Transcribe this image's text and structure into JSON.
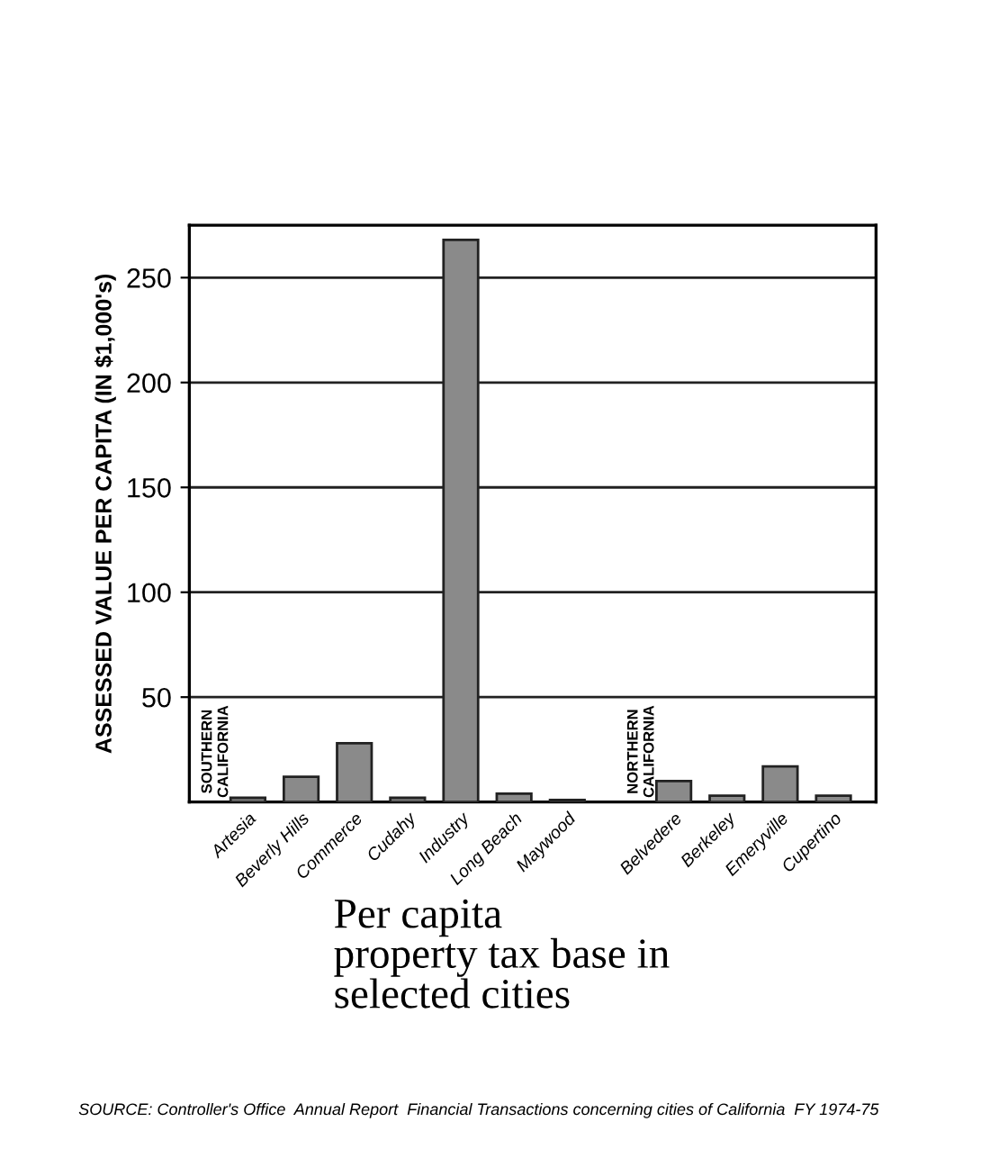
{
  "chart_data": {
    "type": "bar",
    "title": "Per capita\nproperty tax base in\nselected cities",
    "ylabel": "ASSESSED VALUE PER CAPITA (IN $1,000's)",
    "categories": [
      "Artesia",
      "Beverly Hills",
      "Commerce",
      "Cudahy",
      "Industry",
      "Long Beach",
      "Maywood",
      null,
      "Belvedere",
      "Berkeley",
      "Emeryville",
      "Cupertino"
    ],
    "values": [
      2,
      12,
      28,
      2,
      268,
      4,
      1,
      null,
      10,
      3,
      17,
      3
    ],
    "color": "#8a8a8a",
    "ylim": [
      0,
      275
    ],
    "yticks": [
      50,
      100,
      150,
      200,
      250
    ],
    "grid": "y",
    "annotations": [
      "SOUTHERN CALIFORNIA",
      "NORTHERN CALIFORNIA",
      "SOURCE: Controller's Office  Annual Report  Financial Transactions concerning cities of California  FY 1974-75"
    ]
  }
}
